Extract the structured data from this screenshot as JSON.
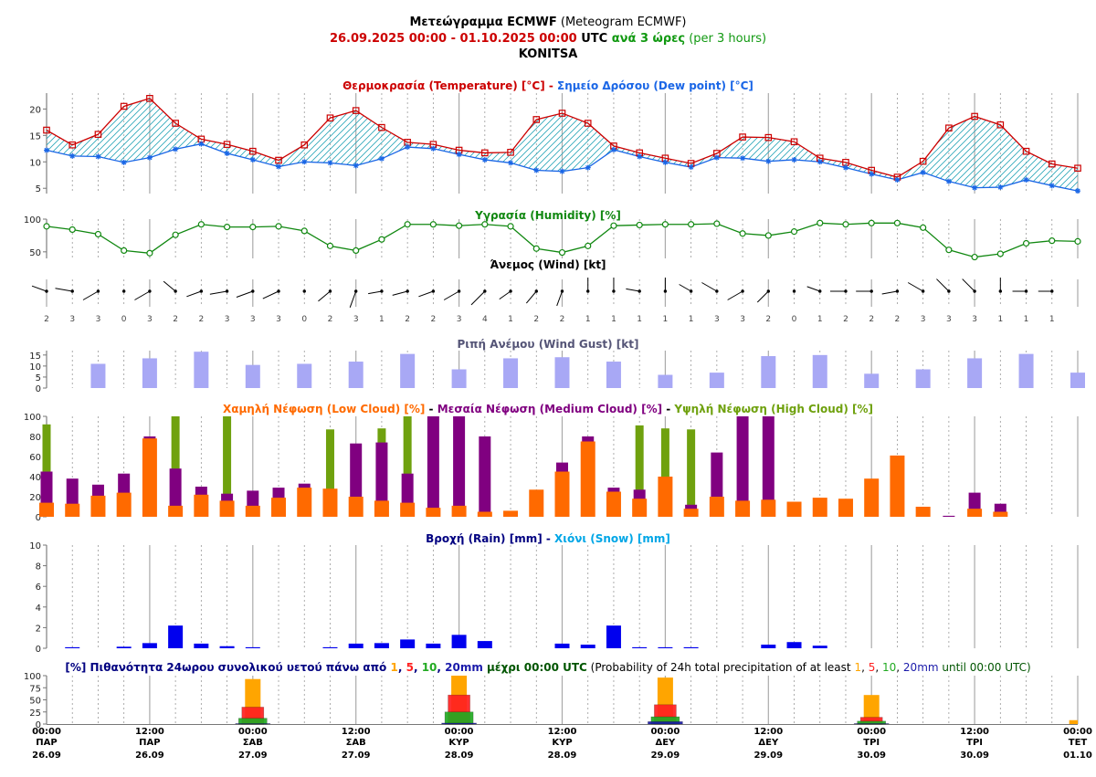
{
  "header": {
    "line1_bold": "Μετεώγραμμα ECMWF",
    "line1_normal": " (Meteogram ECMWF)",
    "line2_dates": "26.09.2025 00:00 - 01.10.2025 00:00",
    "line2_utc": " UTC ",
    "line2_step_gr": "ανά 3 ώρες",
    "line2_step_en": " (per 3 hours)",
    "location": "KONITSA"
  },
  "colors": {
    "temperature": "#cc0000",
    "dew_point": "#1a66e6",
    "humidity": "#118811",
    "wind_gust": "#a8a8f5",
    "wind_gust_title": "#555577",
    "low_cloud": "#ff6a00",
    "medium_cloud": "#800080",
    "high_cloud": "#6fa10e",
    "rain": "#0000ee",
    "rain_title": "#000080",
    "snow": "#00a6e6",
    "p1": "#ffa500",
    "p5": "#ff2020",
    "p10": "#22aa22",
    "p20": "#1a1aaa"
  },
  "chart_data": [
    {
      "id": "temperature",
      "type": "line",
      "title_parts": [
        {
          "text": "Θερμοκρασία (Temperature) [°C]",
          "color": "#cc0000"
        },
        {
          "text": " - ",
          "color": "#cc0000"
        },
        {
          "text": "Σημείο Δρόσου (Dew point) [°C]",
          "color": "#1a66e6"
        }
      ],
      "yticks": [
        5,
        10,
        15,
        20
      ],
      "ylim": [
        4,
        23
      ],
      "series": [
        {
          "name": "Θερμοκρασία (Temperature) [°C]",
          "values": [
            16,
            13.2,
            15.2,
            20.5,
            22,
            17.3,
            14.3,
            13.3,
            12,
            10.3,
            13.2,
            18.3,
            19.7,
            16.5,
            13.7,
            13.3,
            12.2,
            11.7,
            11.8,
            18,
            19.2,
            17.3,
            13,
            11.7,
            10.7,
            9.7,
            11.6,
            14.7,
            14.6,
            13.8,
            10.7,
            9.9,
            8.4,
            7.1,
            10.1,
            16.4,
            18.6,
            17,
            12,
            9.6,
            8.8
          ]
        },
        {
          "name": "Σημείο Δρόσου (Dew point) [°C]",
          "values": [
            12.2,
            11.1,
            11,
            9.9,
            10.8,
            12.4,
            13.4,
            11.6,
            10.4,
            9.1,
            10,
            9.8,
            9.3,
            10.6,
            12.8,
            12.5,
            11.4,
            10.4,
            9.8,
            8.4,
            8.2,
            8.9,
            12.3,
            11,
            9.9,
            9,
            10.8,
            10.7,
            10.1,
            10.4,
            10,
            8.9,
            7.7,
            6.6,
            8,
            6.3,
            5.1,
            5.2,
            6.6,
            5.5,
            4.5
          ]
        }
      ]
    },
    {
      "id": "humidity",
      "type": "line",
      "title_parts": [
        {
          "text": "Υγρασία (Humidity) [%]",
          "color": "#118811"
        }
      ],
      "yticks": [
        50,
        100
      ],
      "ylim": [
        40,
        100
      ],
      "series": [
        {
          "name": "Υγρασία (Humidity) [%]",
          "values": [
            89,
            84,
            77,
            52,
            48,
            76,
            92,
            88,
            88,
            89,
            82,
            59,
            52,
            69,
            92,
            92,
            90,
            92,
            89,
            55,
            49,
            59,
            90,
            91,
            92,
            92,
            93,
            78,
            75,
            81,
            94,
            92,
            94,
            94,
            87,
            53,
            42,
            47,
            63,
            67,
            66
          ]
        }
      ]
    },
    {
      "id": "wind",
      "type": "scatter",
      "title_parts": [
        {
          "text": "Άνεμος (Wind) [kt]",
          "color": "#000000"
        }
      ],
      "values": [
        2,
        3,
        3,
        0,
        3,
        2,
        2,
        3,
        3,
        3,
        0,
        2,
        3,
        1,
        2,
        2,
        3,
        4,
        1,
        2,
        2,
        1,
        1,
        1,
        1,
        1,
        3,
        3,
        2,
        0,
        1,
        2,
        2,
        2,
        3,
        3,
        3,
        1,
        1,
        1
      ],
      "directions_deg": [
        290,
        280,
        240,
        0,
        240,
        310,
        250,
        260,
        250,
        245,
        0,
        230,
        200,
        260,
        255,
        250,
        240,
        225,
        235,
        220,
        200,
        0,
        0,
        280,
        0,
        300,
        300,
        240,
        225,
        0,
        290,
        270,
        270,
        260,
        300,
        315,
        315,
        0,
        270,
        270
      ]
    },
    {
      "id": "gust",
      "type": "bar",
      "title_parts": [
        {
          "text": "Ριπή Ανέμου (Wind Gust) [kt]",
          "color": "#555577"
        }
      ],
      "yticks": [
        0,
        5,
        10,
        15
      ],
      "ylim": [
        0,
        17
      ],
      "values": [
        0,
        0,
        11,
        0,
        13.5,
        0,
        16.5,
        0,
        10.5,
        0,
        11,
        0,
        12,
        0,
        15.5,
        0,
        8.5,
        0,
        13.5,
        0,
        14,
        0,
        12,
        0,
        6,
        0,
        7,
        0,
        14.5,
        0,
        15,
        0,
        6.5,
        0,
        8.5,
        0,
        13.5,
        0,
        15.5,
        0,
        7
      ]
    },
    {
      "id": "cloud",
      "type": "bar",
      "title_parts": [
        {
          "text": "Χαμηλή Νέφωση (Low Cloud) [%]",
          "color": "#ff6a00"
        },
        {
          "text": " - ",
          "color": "#000000"
        },
        {
          "text": "Μεσαία Νέφωση (Medium Cloud) [%]",
          "color": "#800080"
        },
        {
          "text": " - ",
          "color": "#000000"
        },
        {
          "text": "Υψηλή Νέφωση (High Cloud) [%]",
          "color": "#6fa10e"
        }
      ],
      "yticks": [
        0,
        20,
        40,
        60,
        80,
        100
      ],
      "ylim": [
        0,
        100
      ],
      "series": [
        {
          "name": "Υψηλή Νέφωση (High Cloud) [%]",
          "values": [
            92,
            0,
            0,
            0,
            0,
            100,
            0,
            100,
            0,
            0,
            0,
            87,
            0,
            88,
            100,
            0,
            0,
            0,
            0,
            0,
            0,
            0,
            0,
            91,
            88,
            87,
            55,
            100,
            0,
            0,
            0,
            0,
            0,
            0,
            0,
            0,
            0,
            0,
            0,
            0,
            0
          ]
        },
        {
          "name": "Μεσαία Νέφωση (Medium Cloud) [%]",
          "values": [
            45,
            38,
            32,
            43,
            80,
            48,
            30,
            23,
            26,
            29,
            33,
            0,
            73,
            74,
            43,
            100,
            100,
            80,
            0,
            0,
            54,
            80,
            29,
            27,
            0,
            12,
            64,
            100,
            100,
            0,
            0,
            0,
            0,
            0,
            0,
            1,
            24,
            13,
            0,
            0,
            0
          ]
        },
        {
          "name": "Χαμηλή Νέφωση (Low Cloud) [%]",
          "values": [
            14,
            13,
            21,
            24,
            78,
            11,
            22,
            16,
            11,
            19,
            29,
            28,
            20,
            16,
            14,
            9,
            11,
            5,
            6,
            27,
            45,
            75,
            25,
            18,
            40,
            8,
            20,
            16,
            17,
            15,
            19,
            18,
            38,
            61,
            10,
            0,
            8,
            5,
            0,
            0,
            0
          ]
        }
      ]
    },
    {
      "id": "rain",
      "type": "bar",
      "title_parts": [
        {
          "text": "Βροχή (Rain) [mm]",
          "color": "#000080"
        },
        {
          "text": " - ",
          "color": "#000080"
        },
        {
          "text": "Χιόνι (Snow) [mm]",
          "color": "#00a6e6"
        }
      ],
      "yticks": [
        0,
        2,
        4,
        6,
        8,
        10
      ],
      "ylim": [
        0,
        10
      ],
      "series": [
        {
          "name": "Βροχή (Rain) [mm]",
          "values": [
            0,
            0.1,
            0,
            0.15,
            0.5,
            2.2,
            0.45,
            0.2,
            0.1,
            0,
            0,
            0.1,
            0.45,
            0.5,
            0.85,
            0.45,
            1.3,
            0.7,
            0,
            0,
            0.45,
            0.35,
            2.2,
            0.1,
            0.1,
            0.1,
            0,
            0,
            0.35,
            0.6,
            0.25,
            0,
            0,
            0,
            0,
            0,
            0,
            0,
            0,
            0,
            0
          ]
        }
      ]
    },
    {
      "id": "prob",
      "type": "bar",
      "title_parts": [
        {
          "text": "[%] Πιθανότητα 24ωρου συνολικού υετού πάνω από ",
          "color": "#000080",
          "bold": true
        },
        {
          "text": "1",
          "color": "#ffa500",
          "bold": true
        },
        {
          "text": ", ",
          "color": "#000080",
          "bold": true
        },
        {
          "text": "5",
          "color": "#ff2020",
          "bold": true
        },
        {
          "text": ", ",
          "color": "#000080",
          "bold": true
        },
        {
          "text": "10",
          "color": "#22aa22",
          "bold": true
        },
        {
          "text": ", ",
          "color": "#000080",
          "bold": true
        },
        {
          "text": "20mm",
          "color": "#1a1aaa",
          "bold": true
        },
        {
          "text": " μέχρι 00:00 UTC",
          "color": "#005500",
          "bold": true
        },
        {
          "text": " (Probability of 24h total precipitation of at least ",
          "color": "#000000",
          "bold": false
        },
        {
          "text": "1",
          "color": "#ffa500",
          "bold": false
        },
        {
          "text": ", ",
          "color": "#000000",
          "bold": false
        },
        {
          "text": "5",
          "color": "#ff2020",
          "bold": false
        },
        {
          "text": ", ",
          "color": "#000000",
          "bold": false
        },
        {
          "text": "10",
          "color": "#22aa22",
          "bold": false
        },
        {
          "text": ", ",
          "color": "#000000",
          "bold": false
        },
        {
          "text": "20mm",
          "color": "#1a1aaa",
          "bold": false
        },
        {
          "text": " until 00:00 UTC)",
          "color": "#005500",
          "bold": false
        }
      ],
      "yticks": [
        0,
        25,
        50,
        75,
        100
      ],
      "ylim": [
        0,
        100
      ],
      "positions": [
        8,
        16,
        24,
        32,
        40
      ],
      "series": [
        {
          "name": "1",
          "values": [
            93,
            100,
            96,
            60,
            8
          ]
        },
        {
          "name": "5",
          "values": [
            35,
            60,
            40,
            14,
            0
          ]
        },
        {
          "name": "10",
          "values": [
            12,
            25,
            15,
            6,
            0
          ]
        },
        {
          "name": "20mm",
          "values": [
            1,
            2,
            5,
            1,
            0
          ]
        }
      ]
    }
  ],
  "x_axis": {
    "labels": [
      {
        "pos": 0,
        "time": "00:00",
        "day": "ΠΑΡ",
        "date": "26.09"
      },
      {
        "pos": 4,
        "time": "12:00",
        "day": "ΠΑΡ",
        "date": "26.09"
      },
      {
        "pos": 8,
        "time": "00:00",
        "day": "ΣΑΒ",
        "date": "27.09"
      },
      {
        "pos": 12,
        "time": "12:00",
        "day": "ΣΑΒ",
        "date": "27.09"
      },
      {
        "pos": 16,
        "time": "00:00",
        "day": "ΚΥΡ",
        "date": "28.09"
      },
      {
        "pos": 20,
        "time": "12:00",
        "day": "ΚΥΡ",
        "date": "28.09"
      },
      {
        "pos": 24,
        "time": "00:00",
        "day": "ΔΕΥ",
        "date": "29.09"
      },
      {
        "pos": 28,
        "time": "12:00",
        "day": "ΔΕΥ",
        "date": "29.09"
      },
      {
        "pos": 32,
        "time": "00:00",
        "day": "ΤΡΙ",
        "date": "30.09"
      },
      {
        "pos": 36,
        "time": "12:00",
        "day": "ΤΡΙ",
        "date": "30.09"
      },
      {
        "pos": 40,
        "time": "00:00",
        "day": "ΤΕΤ",
        "date": "01.10"
      }
    ]
  }
}
